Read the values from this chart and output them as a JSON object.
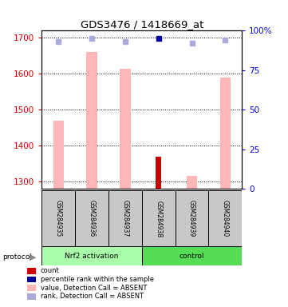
{
  "title": "GDS3476 / 1418669_at",
  "samples": [
    "GSM284935",
    "GSM284936",
    "GSM284937",
    "GSM284938",
    "GSM284939",
    "GSM284940"
  ],
  "ylim_left": [
    1280,
    1720
  ],
  "ylim_right": [
    0,
    100
  ],
  "yticks_left": [
    1300,
    1400,
    1500,
    1600,
    1700
  ],
  "yticks_right": [
    0,
    25,
    50,
    75,
    100
  ],
  "pink_bar_tops": [
    1470,
    1660,
    1615,
    1300,
    1315,
    1590
  ],
  "pink_bar_show": [
    true,
    true,
    true,
    false,
    true,
    true
  ],
  "red_bar_tops": [
    1300,
    1300,
    1300,
    1370,
    1300,
    1300
  ],
  "red_bar_show": [
    false,
    false,
    false,
    true,
    false,
    false
  ],
  "blue_sq_vals": [
    93,
    95,
    93,
    95,
    92,
    94
  ],
  "blue_sq_dark": [
    false,
    false,
    false,
    true,
    false,
    false
  ],
  "ybase": 1280,
  "pink_color": "#FFB6B6",
  "dark_red_color": "#CC0000",
  "dark_blue_color": "#000099",
  "light_blue_color": "#AAAADD",
  "bar_width": 0.32,
  "red_bar_width": 0.18,
  "left_axis_color": "#CC0000",
  "right_axis_color": "#0000CC",
  "group1_label": "Nrf2 activation",
  "group2_label": "control",
  "group1_color": "#AAFFAA",
  "group2_color": "#55DD55",
  "sample_box_color": "#C8C8C8",
  "legend_labels": [
    "count",
    "percentile rank within the sample",
    "value, Detection Call = ABSENT",
    "rank, Detection Call = ABSENT"
  ],
  "legend_colors": [
    "#CC0000",
    "#000099",
    "#FFB6B6",
    "#AAAADD"
  ]
}
